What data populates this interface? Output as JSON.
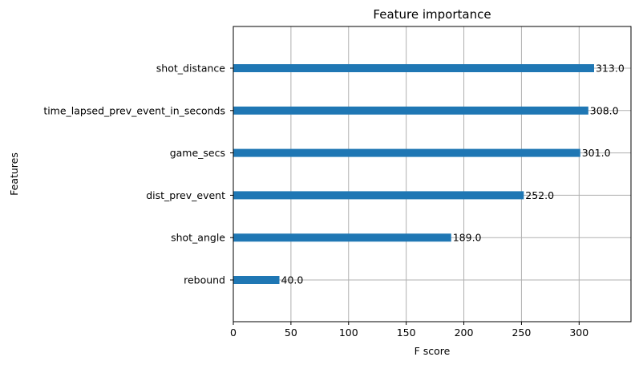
{
  "chart_data": {
    "type": "bar",
    "orientation": "horizontal",
    "title": "Feature importance",
    "xlabel": "F score",
    "ylabel": "Features",
    "xlim": [
      0,
      345
    ],
    "xticks": [
      0,
      50,
      100,
      150,
      200,
      250,
      300
    ],
    "grid": true,
    "categories": [
      "shot_distance",
      "time_lapsed_prev_event_in_seconds",
      "game_secs",
      "dist_prev_event",
      "shot_angle",
      "rebound"
    ],
    "values": [
      313,
      308,
      301,
      252,
      189,
      40
    ],
    "data_labels": [
      "313.0",
      "308.0",
      "301.0",
      "252.0",
      "189.0",
      "40.0"
    ],
    "bar_color": "#1f77b4"
  }
}
